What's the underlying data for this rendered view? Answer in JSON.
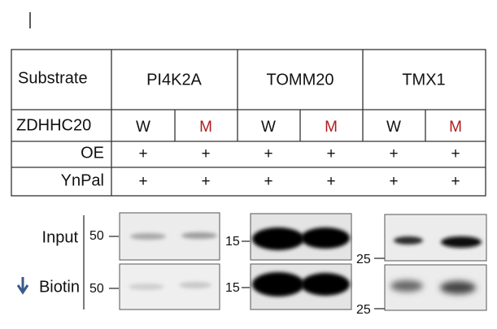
{
  "table": {
    "columns": [
      "Substrate",
      "PI4K2A",
      "TOMM20",
      "TMX1"
    ],
    "rows": [
      {
        "label": "ZDHHC20",
        "cells": [
          "W",
          "M",
          "W",
          "M",
          "W",
          "M"
        ]
      },
      {
        "label": "OE",
        "cells": [
          "+",
          "+",
          "+",
          "+",
          "+",
          "+"
        ]
      },
      {
        "label": "YnPal",
        "cells": [
          "+",
          "+",
          "+",
          "+",
          "+",
          "+"
        ]
      }
    ]
  },
  "blots": {
    "rows": [
      "Input",
      "Biotin"
    ],
    "markers": [
      [
        "50",
        "15",
        "25"
      ],
      [
        "50",
        "15",
        "25"
      ]
    ]
  }
}
